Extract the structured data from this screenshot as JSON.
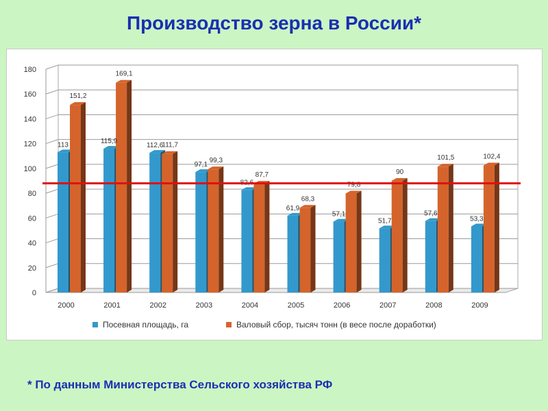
{
  "slide": {
    "title": "Производство зерна в России*",
    "footnote": "* По данным Министерства Сельского хозяйства РФ"
  },
  "colors": {
    "series_blue": "#3399cc",
    "series_orange": "#d4642c",
    "threshold_line": "#e01010",
    "title": "#1a2fb0"
  },
  "chart_data": {
    "type": "bar",
    "title": "",
    "xlabel": "",
    "ylabel": "",
    "ylim": [
      0,
      180
    ],
    "yticks": [
      0,
      20,
      40,
      60,
      80,
      100,
      120,
      140,
      160,
      180
    ],
    "grid": true,
    "legend_position": "bottom",
    "categories": [
      "2000",
      "2001",
      "2002",
      "2003",
      "2004",
      "2005",
      "2006",
      "2007",
      "2008",
      "2009"
    ],
    "series": [
      {
        "name": "Посевная площадь, га",
        "values": [
          113,
          115.9,
          112.6,
          97.1,
          82.6,
          61.9,
          57.1,
          51.7,
          57.6,
          53.3
        ],
        "labels": [
          "113",
          "115,9",
          "112,6",
          "97,1",
          "82,6",
          "61,9",
          "57,1",
          "51,7",
          "57,6",
          "53,3"
        ]
      },
      {
        "name": "Валовый сбор, тысяч тонн (в весе после доработки)",
        "values": [
          151.2,
          169.1,
          111.7,
          99.3,
          87.7,
          68.3,
          79.8,
          90,
          101.5,
          102.4
        ],
        "labels": [
          "151,2",
          "169,1",
          "111,7",
          "99,3",
          "87,7",
          "68,3",
          "79,8",
          "90",
          "101,5",
          "102,4"
        ]
      }
    ],
    "reference_line": {
      "value": 88
    }
  }
}
